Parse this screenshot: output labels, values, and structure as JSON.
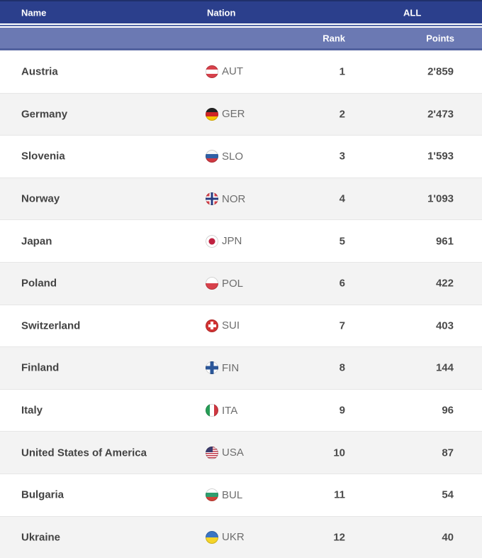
{
  "header": {
    "name": "Name",
    "nation": "Nation",
    "all": "ALL",
    "rank": "Rank",
    "points": "Points"
  },
  "rows": [
    {
      "name": "Austria",
      "code": "AUT",
      "flag_icon": "flag-aut-icon",
      "rank": "1",
      "points": "2'859"
    },
    {
      "name": "Germany",
      "code": "GER",
      "flag_icon": "flag-ger-icon",
      "rank": "2",
      "points": "2'473"
    },
    {
      "name": "Slovenia",
      "code": "SLO",
      "flag_icon": "flag-slo-icon",
      "rank": "3",
      "points": "1'593"
    },
    {
      "name": "Norway",
      "code": "NOR",
      "flag_icon": "flag-nor-icon",
      "rank": "4",
      "points": "1'093"
    },
    {
      "name": "Japan",
      "code": "JPN",
      "flag_icon": "flag-jpn-icon",
      "rank": "5",
      "points": "961"
    },
    {
      "name": "Poland",
      "code": "POL",
      "flag_icon": "flag-pol-icon",
      "rank": "6",
      "points": "422"
    },
    {
      "name": "Switzerland",
      "code": "SUI",
      "flag_icon": "flag-sui-icon",
      "rank": "7",
      "points": "403"
    },
    {
      "name": "Finland",
      "code": "FIN",
      "flag_icon": "flag-fin-icon",
      "rank": "8",
      "points": "144"
    },
    {
      "name": "Italy",
      "code": "ITA",
      "flag_icon": "flag-ita-icon",
      "rank": "9",
      "points": "96"
    },
    {
      "name": "United States of America",
      "code": "USA",
      "flag_icon": "flag-usa-icon",
      "rank": "10",
      "points": "87"
    },
    {
      "name": "Bulgaria",
      "code": "BUL",
      "flag_icon": "flag-bul-icon",
      "rank": "11",
      "points": "54"
    },
    {
      "name": "Ukraine",
      "code": "UKR",
      "flag_icon": "flag-ukr-icon",
      "rank": "12",
      "points": "40"
    }
  ],
  "colors": {
    "header_navy": "#2b3f8c",
    "header_slate": "#6b79b3",
    "header_border": "#51619e",
    "row_alt": "#f3f3f3",
    "text_dark": "#4a4a4a",
    "text_code": "#6d6d6d"
  }
}
